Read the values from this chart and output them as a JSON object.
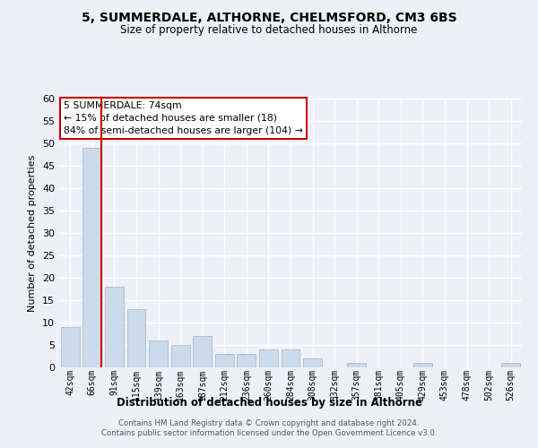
{
  "title1": "5, SUMMERDALE, ALTHORNE, CHELMSFORD, CM3 6BS",
  "title2": "Size of property relative to detached houses in Althorne",
  "xlabel": "Distribution of detached houses by size in Althorne",
  "ylabel": "Number of detached properties",
  "bar_color": "#ccdaea",
  "bar_edgecolor": "#aabcce",
  "categories": [
    "42sqm",
    "66sqm",
    "91sqm",
    "115sqm",
    "139sqm",
    "163sqm",
    "187sqm",
    "212sqm",
    "236sqm",
    "260sqm",
    "284sqm",
    "308sqm",
    "332sqm",
    "357sqm",
    "381sqm",
    "405sqm",
    "429sqm",
    "453sqm",
    "478sqm",
    "502sqm",
    "526sqm"
  ],
  "values": [
    9,
    49,
    18,
    13,
    6,
    5,
    7,
    3,
    3,
    4,
    4,
    2,
    0,
    1,
    0,
    0,
    1,
    0,
    0,
    0,
    1
  ],
  "ylim": [
    0,
    60
  ],
  "yticks": [
    0,
    5,
    10,
    15,
    20,
    25,
    30,
    35,
    40,
    45,
    50,
    55,
    60
  ],
  "vline_color": "#cc0000",
  "annotation_text": "5 SUMMERDALE: 74sqm\n← 15% of detached houses are smaller (18)\n84% of semi-detached houses are larger (104) →",
  "annotation_box_color": "#ffffff",
  "annotation_box_edgecolor": "#cc0000",
  "footer_text": "Contains HM Land Registry data © Crown copyright and database right 2024.\nContains public sector information licensed under the Open Government Licence v3.0.",
  "background_color": "#edf1f7",
  "grid_color": "#ffffff"
}
